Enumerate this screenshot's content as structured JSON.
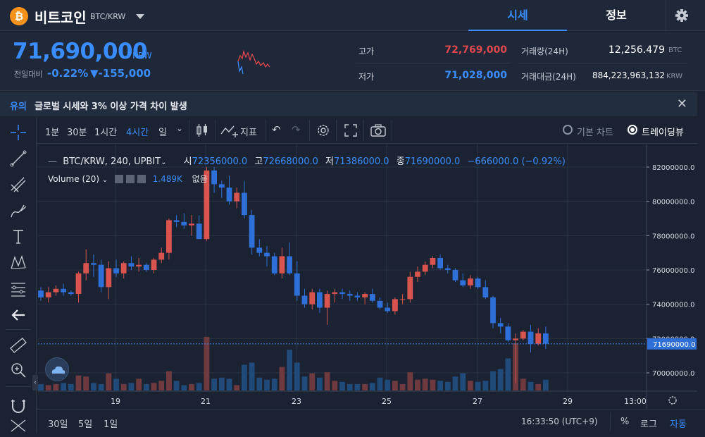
{
  "header": {
    "coin_symbol_glyph": "₿",
    "coin_name": "비트코인",
    "pair": "BTC/KRW",
    "tabs": [
      "시세",
      "정보"
    ],
    "active_tab": "시세",
    "settings_icon": "gear-icon"
  },
  "ticker": {
    "price": "71,690,000",
    "unit": "KRW",
    "prev_label": "전일대비",
    "change_pct": "-0.22%",
    "change_amt": "▼-155,000",
    "high_label": "고가",
    "high_value": "72,769,000",
    "low_label": "저가",
    "low_value": "71,028,000",
    "volume_label": "거래량(24H)",
    "volume_value": "12,256.479",
    "volume_unit": "BTC",
    "amount_label": "거래대금(24H)",
    "amount_value": "884,223,963,132",
    "amount_unit": "KRW"
  },
  "notice": {
    "tag": "유의",
    "text": "글로벌 시세와 3% 이상 가격 차이 발생"
  },
  "toolbar": {
    "intervals": [
      "1분",
      "30분",
      "1시간",
      "4시간",
      "일"
    ],
    "active_interval": "4시간",
    "indicator_label": "지표",
    "basic_chart": "기본 차트",
    "tradingview": "트레이딩뷰"
  },
  "legend": {
    "symbol": "BTC/KRW, 240, UPBIT",
    "open_k": "시",
    "open_v": "72356000.0",
    "high_k": "고",
    "high_v": "72668000.0",
    "low_k": "저",
    "low_v": "71386000.0",
    "close_k": "종",
    "close_v": "71690000.0",
    "change": "−666000.0 (−0.92%)",
    "volume_label": "Volume (20)",
    "volume_value": "1.489K",
    "volume_extra": "없음"
  },
  "price_axis": [
    "82000000.0",
    "80000000.0",
    "78000000.0",
    "76000000.0",
    "74000000.0",
    "72000000.0",
    "70000000.0"
  ],
  "last_price_tag": "71690000.0",
  "time_axis": [
    "19",
    "21",
    "23",
    "25",
    "27",
    "29",
    "13:00"
  ],
  "bottom": {
    "ranges": [
      "30일",
      "5일",
      "1일"
    ],
    "time": "16:33:50 (UTC+9)",
    "percent": "%",
    "log": "로그",
    "auto": "자동"
  },
  "colors": {
    "up": "#d9534f",
    "down": "#2f6fd8",
    "accent": "#3a8dff",
    "high_red": "#e0474c"
  },
  "candles": [
    [
      74800000,
      75000000,
      74200000,
      74400000
    ],
    [
      74400000,
      75000000,
      74100000,
      74700000
    ],
    [
      74700000,
      75100000,
      74500000,
      74900000
    ],
    [
      74900000,
      75200000,
      74500000,
      74700000
    ],
    [
      74700000,
      74800000,
      74500000,
      74600000
    ],
    [
      74600000,
      75900000,
      74100000,
      75800000
    ],
    [
      75800000,
      77200000,
      75400000,
      76400000
    ],
    [
      76400000,
      76900000,
      75600000,
      76300000
    ],
    [
      76300000,
      76600000,
      74700000,
      75000000
    ],
    [
      75000000,
      76500000,
      74300000,
      76100000
    ],
    [
      76100000,
      76600000,
      75600000,
      75800000
    ],
    [
      75800000,
      76500000,
      75500000,
      76400000
    ],
    [
      76400000,
      76800000,
      76000000,
      76200000
    ],
    [
      76200000,
      76700000,
      75900000,
      76300000
    ],
    [
      76300000,
      76400000,
      75900000,
      76000000
    ],
    [
      76000000,
      76700000,
      75800000,
      76600000
    ],
    [
      76600000,
      77300000,
      76400000,
      77000000
    ],
    [
      77000000,
      79000000,
      76600000,
      78900000
    ],
    [
      78900000,
      79200000,
      78500000,
      78800000
    ],
    [
      78800000,
      79300000,
      78400000,
      78600000
    ],
    [
      78600000,
      79200000,
      78000000,
      78700000
    ],
    [
      78700000,
      79200000,
      77800000,
      77800000
    ],
    [
      77800000,
      82000000,
      77700000,
      81800000
    ],
    [
      81800000,
      82000000,
      80500000,
      81000000
    ],
    [
      81000000,
      81200000,
      80200000,
      80800000
    ],
    [
      80800000,
      81500000,
      79800000,
      80000000
    ],
    [
      80000000,
      80800000,
      79600000,
      80500000
    ],
    [
      80500000,
      81200000,
      79000000,
      79200000
    ],
    [
      79200000,
      79500000,
      76900000,
      77300000
    ],
    [
      77300000,
      77800000,
      76800000,
      77000000
    ],
    [
      77000000,
      77400000,
      76200000,
      76800000
    ],
    [
      76800000,
      77000000,
      75700000,
      75800000
    ],
    [
      75800000,
      77300000,
      75500000,
      76800000
    ],
    [
      76800000,
      77600000,
      75700000,
      75800000
    ],
    [
      75800000,
      76500000,
      74200000,
      74500000
    ],
    [
      74500000,
      74900000,
      73800000,
      74000000
    ],
    [
      74000000,
      74900000,
      73700000,
      74700000
    ],
    [
      74700000,
      74900000,
      73500000,
      73800000
    ],
    [
      73800000,
      74800000,
      72800000,
      74600000
    ],
    [
      74600000,
      74900000,
      74100000,
      74700000
    ],
    [
      74700000,
      74900000,
      74300000,
      74600000
    ],
    [
      74600000,
      74800000,
      74200000,
      74500000
    ],
    [
      74500000,
      74700000,
      74200000,
      74400000
    ],
    [
      74400000,
      74700000,
      74000000,
      74600000
    ],
    [
      74600000,
      74900000,
      74100000,
      74200000
    ],
    [
      74200000,
      74400000,
      73700000,
      73800000
    ],
    [
      73800000,
      74100000,
      73500000,
      73600000
    ],
    [
      73600000,
      74400000,
      73400000,
      74300000
    ],
    [
      74300000,
      74600000,
      74000000,
      74300000
    ],
    [
      74300000,
      75900000,
      74100000,
      75600000
    ],
    [
      75600000,
      76200000,
      75300000,
      75900000
    ],
    [
      75900000,
      76500000,
      75700000,
      76300000
    ],
    [
      76300000,
      76800000,
      76100000,
      76700000
    ],
    [
      76700000,
      76900000,
      76000000,
      76100000
    ],
    [
      76100000,
      76300000,
      75800000,
      76000000
    ],
    [
      76000000,
      76100000,
      75300000,
      75400000
    ],
    [
      75400000,
      75800000,
      75000000,
      75100000
    ],
    [
      75100000,
      75700000,
      74900000,
      75500000
    ],
    [
      75500000,
      75600000,
      74900000,
      75000000
    ],
    [
      75000000,
      75400000,
      74300000,
      74400000
    ],
    [
      74400000,
      74500000,
      72600000,
      72900000
    ],
    [
      72900000,
      73200000,
      72300000,
      72700000
    ],
    [
      72700000,
      72900000,
      71800000,
      71900000
    ],
    [
      71900000,
      72300000,
      69400000,
      72000000
    ],
    [
      72000000,
      72500000,
      71900000,
      72400000
    ],
    [
      72400000,
      72800000,
      71200000,
      71700000
    ],
    [
      71700000,
      72600000,
      71600000,
      72300000
    ],
    [
      72300000,
      72700000,
      71400000,
      71700000
    ]
  ],
  "volumes": [
    0.3,
    0.25,
    0.3,
    0.35,
    0.3,
    0.7,
    0.65,
    0.35,
    0.3,
    0.8,
    0.55,
    0.3,
    0.35,
    0.55,
    0.3,
    0.35,
    0.45,
    0.9,
    0.45,
    0.25,
    0.3,
    0.35,
    2.5,
    0.55,
    0.6,
    0.55,
    0.25,
    1.2,
    1.3,
    0.6,
    0.5,
    0.55,
    1.1,
    1.9,
    1.3,
    0.65,
    0.8,
    0.6,
    0.85,
    0.45,
    0.4,
    0.3,
    0.3,
    0.3,
    0.35,
    0.6,
    0.5,
    0.45,
    0.3,
    0.85,
    0.5,
    0.55,
    0.5,
    0.45,
    0.4,
    0.65,
    0.8,
    0.45,
    0.4,
    0.45,
    0.9,
    1.0,
    1.5,
    2.2,
    0.55,
    0.4,
    0.3,
    0.5
  ]
}
